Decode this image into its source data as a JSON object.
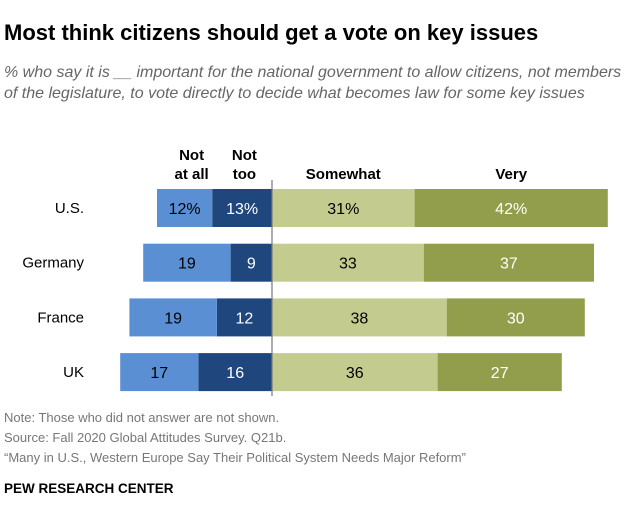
{
  "title": "Most think citizens should get a vote on key issues",
  "subtitle": "% who say it is __ important for the national government to allow citizens, not members of the legislature, to vote directly to decide what becomes law for some key issues",
  "notes": [
    "Note: Those who did not answer are not shown.",
    "Source: Fall 2020 Global Attitudes Survey. Q21b.",
    "“Many in U.S., Western Europe Say Their Political System Needs Major Reform”"
  ],
  "brand": "PEW RESEARCH CENTER",
  "chart_data": {
    "type": "bar",
    "subtype": "diverging-stacked-horizontal",
    "categories": [
      "U.S.",
      "Germany",
      "France",
      "UK"
    ],
    "series": [
      {
        "name": "Not at all",
        "header": [
          "Not",
          "at all"
        ],
        "side": "negative",
        "color": "#1f477d",
        "text_color": "#ffffff",
        "values": [
          13,
          9,
          12,
          16
        ],
        "labels": [
          "13%",
          "9",
          "12",
          "16"
        ]
      },
      {
        "name": "Not too",
        "header": [
          "Not",
          "too"
        ],
        "side": "negative",
        "color": "#5b8fd4",
        "text_color": "#000000",
        "values": [
          12,
          19,
          19,
          17
        ],
        "labels": [
          "12%",
          "19",
          "19",
          "17"
        ]
      },
      {
        "name": "Somewhat",
        "header": [
          "Somewhat"
        ],
        "side": "positive",
        "color": "#c4cb8e",
        "text_color": "#000000",
        "values": [
          31,
          33,
          38,
          36
        ],
        "labels": [
          "31%",
          "33",
          "38",
          "36"
        ]
      },
      {
        "name": "Very",
        "header": [
          "Very"
        ],
        "side": "positive",
        "color": "#929e4b",
        "text_color": "#ffffff",
        "values": [
          42,
          37,
          30,
          27
        ],
        "labels": [
          "42%",
          "37",
          "30",
          "27"
        ]
      }
    ]
  }
}
